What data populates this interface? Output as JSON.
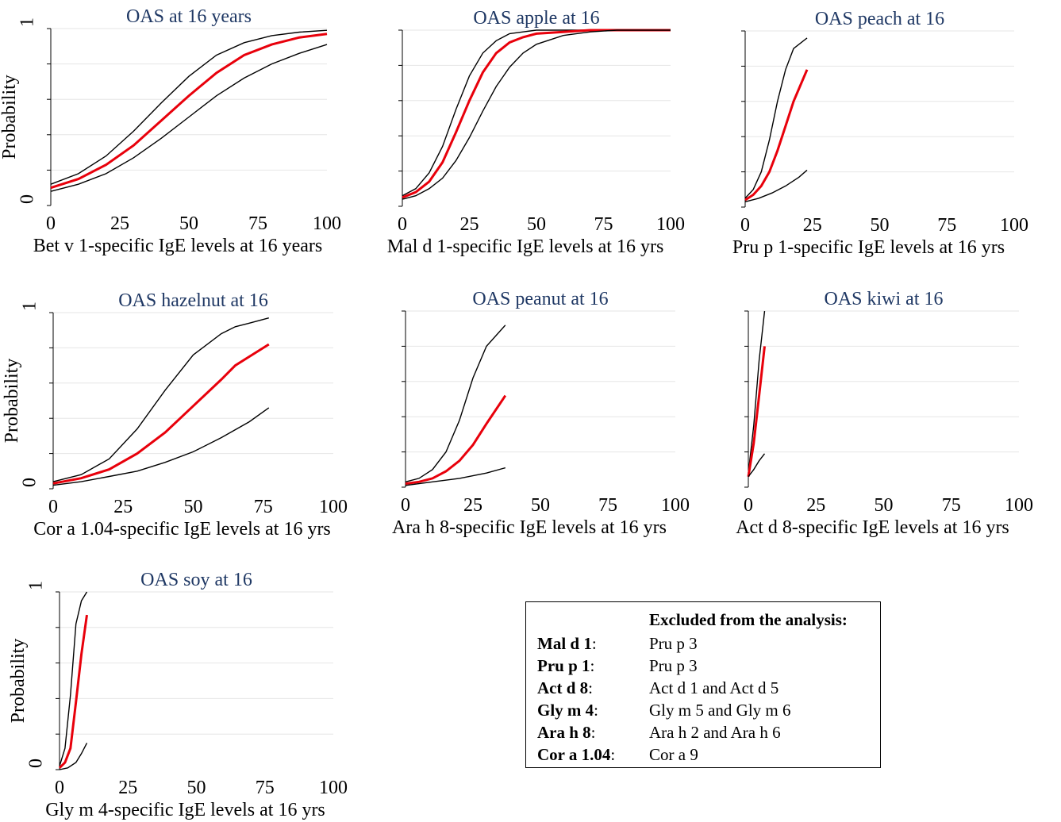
{
  "colors": {
    "estimate": "#e8000b",
    "ci": "#000000",
    "title": "#1f3864"
  },
  "chart_data": [
    {
      "type": "line",
      "title": "OAS at 16 years",
      "xlabel": "Bet v 1-specific IgE levels at 16 years",
      "ylabel": "Probability",
      "xlim": [
        0,
        100
      ],
      "ylim": [
        0,
        1
      ],
      "xticks": [
        "0",
        "25",
        "50",
        "75",
        "100"
      ],
      "yticks": [
        "0",
        "1"
      ],
      "grid": true,
      "series": [
        {
          "role": "upper",
          "x": [
            0,
            10,
            20,
            30,
            40,
            50,
            60,
            70,
            80,
            90,
            100
          ],
          "y": [
            0.12,
            0.18,
            0.28,
            0.42,
            0.58,
            0.73,
            0.85,
            0.92,
            0.96,
            0.98,
            0.99
          ]
        },
        {
          "role": "estimate",
          "x": [
            0,
            10,
            20,
            30,
            40,
            50,
            60,
            70,
            80,
            90,
            100
          ],
          "y": [
            0.1,
            0.15,
            0.23,
            0.34,
            0.48,
            0.62,
            0.75,
            0.85,
            0.91,
            0.95,
            0.97
          ]
        },
        {
          "role": "lower",
          "x": [
            0,
            10,
            20,
            30,
            40,
            50,
            60,
            70,
            80,
            90,
            100
          ],
          "y": [
            0.08,
            0.12,
            0.18,
            0.27,
            0.38,
            0.5,
            0.62,
            0.72,
            0.8,
            0.86,
            0.91
          ]
        }
      ]
    },
    {
      "type": "line",
      "title": "OAS apple at 16",
      "xlabel": "Mal d 1-specific IgE levels at 16 yrs",
      "ylabel": "",
      "xlim": [
        0,
        100
      ],
      "ylim": [
        0,
        1
      ],
      "xticks": [
        "0",
        "25",
        "50",
        "75",
        "100"
      ],
      "yticks": [],
      "grid": true,
      "series": [
        {
          "role": "upper",
          "x": [
            0,
            5,
            10,
            15,
            20,
            25,
            30,
            35,
            40,
            45,
            50,
            60,
            70,
            100
          ],
          "y": [
            0.06,
            0.1,
            0.19,
            0.34,
            0.55,
            0.74,
            0.87,
            0.94,
            0.98,
            0.99,
            1,
            1,
            1,
            1
          ]
        },
        {
          "role": "estimate",
          "x": [
            0,
            5,
            10,
            15,
            20,
            25,
            30,
            35,
            40,
            45,
            50,
            60,
            70,
            100
          ],
          "y": [
            0.05,
            0.08,
            0.14,
            0.25,
            0.42,
            0.6,
            0.76,
            0.87,
            0.93,
            0.96,
            0.98,
            0.99,
            1,
            1
          ]
        },
        {
          "role": "lower",
          "x": [
            0,
            5,
            10,
            15,
            20,
            25,
            30,
            35,
            40,
            45,
            50,
            60,
            70,
            80,
            100
          ],
          "y": [
            0.04,
            0.06,
            0.1,
            0.16,
            0.26,
            0.39,
            0.54,
            0.68,
            0.79,
            0.87,
            0.92,
            0.97,
            0.99,
            1,
            1
          ]
        }
      ]
    },
    {
      "type": "line",
      "title": "OAS peach at 16",
      "xlabel": "Pru p 1-specific IgE levels at 16 yrs",
      "ylabel": "",
      "xlim": [
        0,
        100
      ],
      "ylim": [
        0,
        1
      ],
      "xticks": [
        "0",
        "25",
        "50",
        "75",
        "100"
      ],
      "yticks": [],
      "grid": true,
      "series": [
        {
          "role": "upper",
          "x": [
            0,
            3,
            6,
            9,
            12,
            15,
            18,
            23
          ],
          "y": [
            0.05,
            0.1,
            0.2,
            0.38,
            0.6,
            0.78,
            0.9,
            0.96
          ]
        },
        {
          "role": "estimate",
          "x": [
            0,
            3,
            6,
            9,
            12,
            15,
            18,
            23
          ],
          "y": [
            0.04,
            0.07,
            0.12,
            0.2,
            0.32,
            0.46,
            0.6,
            0.78
          ]
        },
        {
          "role": "lower",
          "x": [
            0,
            5,
            10,
            15,
            20,
            23
          ],
          "y": [
            0.03,
            0.05,
            0.08,
            0.12,
            0.17,
            0.21
          ]
        }
      ]
    },
    {
      "type": "line",
      "title": "OAS hazelnut at 16",
      "xlabel": "Cor a 1.04-specific IgE levels at 16 yrs",
      "ylabel": "Probability",
      "xlim": [
        0,
        100
      ],
      "ylim": [
        0,
        1
      ],
      "xticks": [
        "0",
        "25",
        "50",
        "75",
        "100"
      ],
      "yticks": [
        "0",
        "1"
      ],
      "grid": true,
      "series": [
        {
          "role": "upper",
          "x": [
            0,
            10,
            20,
            30,
            40,
            50,
            60,
            65,
            70,
            77
          ],
          "y": [
            0.04,
            0.08,
            0.17,
            0.34,
            0.56,
            0.76,
            0.88,
            0.92,
            0.94,
            0.97
          ]
        },
        {
          "role": "estimate",
          "x": [
            0,
            10,
            20,
            30,
            40,
            50,
            60,
            65,
            70,
            77
          ],
          "y": [
            0.03,
            0.06,
            0.11,
            0.2,
            0.32,
            0.47,
            0.62,
            0.7,
            0.75,
            0.82
          ]
        },
        {
          "role": "lower",
          "x": [
            0,
            10,
            20,
            30,
            40,
            50,
            60,
            70,
            77
          ],
          "y": [
            0.02,
            0.04,
            0.07,
            0.1,
            0.15,
            0.21,
            0.29,
            0.38,
            0.46
          ]
        }
      ]
    },
    {
      "type": "line",
      "title": "OAS peanut at 16",
      "xlabel": "Ara h 8-specific IgE levels at 16 yrs",
      "ylabel": "",
      "xlim": [
        0,
        100
      ],
      "ylim": [
        0,
        1
      ],
      "xticks": [
        "0",
        "25",
        "50",
        "75",
        "100"
      ],
      "yticks": [],
      "grid": true,
      "series": [
        {
          "role": "upper",
          "x": [
            0,
            5,
            10,
            15,
            20,
            25,
            30,
            37
          ],
          "y": [
            0.03,
            0.05,
            0.1,
            0.2,
            0.38,
            0.62,
            0.8,
            0.92
          ]
        },
        {
          "role": "estimate",
          "x": [
            0,
            5,
            10,
            15,
            20,
            25,
            30,
            37
          ],
          "y": [
            0.02,
            0.03,
            0.05,
            0.09,
            0.15,
            0.24,
            0.36,
            0.52
          ]
        },
        {
          "role": "lower",
          "x": [
            0,
            10,
            20,
            30,
            37
          ],
          "y": [
            0.01,
            0.03,
            0.05,
            0.08,
            0.11
          ]
        }
      ]
    },
    {
      "type": "line",
      "title": "OAS kiwi at 16",
      "xlabel": "Act d 8-specific IgE levels at 16 yrs",
      "ylabel": "",
      "xlim": [
        0,
        100
      ],
      "ylim": [
        0,
        1
      ],
      "xticks": [
        "0",
        "25",
        "50",
        "75",
        "100"
      ],
      "yticks": [],
      "grid": true,
      "series": [
        {
          "role": "upper",
          "x": [
            0,
            2,
            4,
            6
          ],
          "y": [
            0.08,
            0.35,
            0.72,
            1
          ]
        },
        {
          "role": "estimate",
          "x": [
            0,
            2,
            4,
            6
          ],
          "y": [
            0.06,
            0.25,
            0.52,
            0.8
          ]
        },
        {
          "role": "lower",
          "x": [
            0,
            2,
            4,
            6
          ],
          "y": [
            0.06,
            0.1,
            0.15,
            0.19
          ]
        }
      ]
    },
    {
      "type": "line",
      "title": "OAS soy at 16",
      "xlabel": "Gly m 4-specific IgE levels at 16 yrs",
      "ylabel": "Probability",
      "xlim": [
        0,
        100
      ],
      "ylim": [
        0,
        1
      ],
      "xticks": [
        "0",
        "25",
        "50",
        "75",
        "100"
      ],
      "yticks": [
        "0",
        "1"
      ],
      "grid": true,
      "series": [
        {
          "role": "upper",
          "x": [
            0,
            2,
            4,
            6,
            8,
            10
          ],
          "y": [
            0.02,
            0.12,
            0.42,
            0.82,
            0.95,
            1
          ]
        },
        {
          "role": "estimate",
          "x": [
            0,
            2,
            4,
            6,
            8,
            10
          ],
          "y": [
            0.01,
            0.04,
            0.12,
            0.38,
            0.65,
            0.87
          ]
        },
        {
          "role": "lower",
          "x": [
            0,
            3,
            6,
            8,
            10
          ],
          "y": [
            0,
            0.01,
            0.04,
            0.09,
            0.15
          ]
        }
      ]
    }
  ],
  "legend": {
    "header": "Excluded from the analysis:",
    "rows": [
      {
        "key": "Mal d 1",
        "value": "Pru p 3"
      },
      {
        "key": "Pru p 1",
        "value": "Pru p 3"
      },
      {
        "key": "Act d 8",
        "value": "Act d 1 and Act d 5"
      },
      {
        "key": "Gly m 4",
        "value": "Gly m 5 and Gly m 6"
      },
      {
        "key": "Ara h 8",
        "value": "Ara h 2 and Ara h 6"
      },
      {
        "key": "Cor a 1.04",
        "value": "Cor a 9"
      }
    ]
  }
}
